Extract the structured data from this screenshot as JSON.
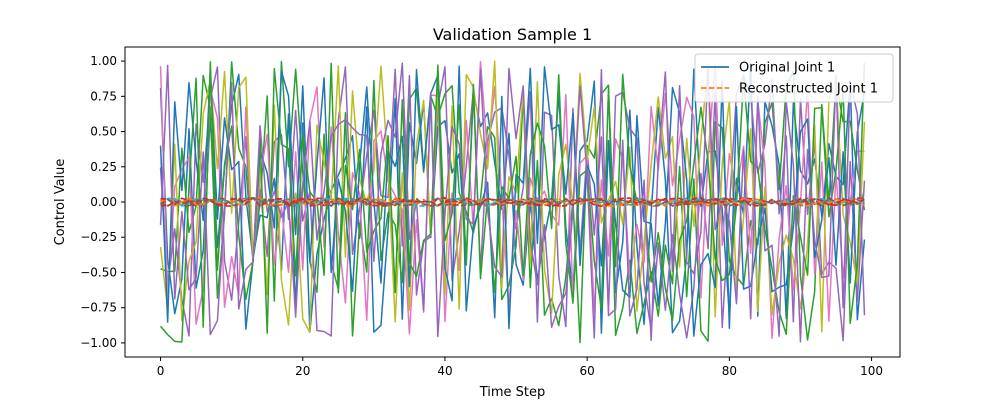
{
  "chart_data": {
    "type": "line",
    "title": "Validation Sample 1",
    "xlabel": "Time Step",
    "ylabel": "Control Value",
    "xlim": [
      -5,
      104
    ],
    "ylim": [
      -1.1,
      1.1
    ],
    "xticks": [
      0,
      20,
      40,
      60,
      80,
      100
    ],
    "yticks": [
      -1.0,
      -0.75,
      -0.5,
      -0.25,
      0.0,
      0.25,
      0.5,
      0.75,
      1.0
    ],
    "ytick_labels": [
      "−1.00",
      "−0.75",
      "−0.50",
      "−0.25",
      "0.00",
      "0.25",
      "0.50",
      "0.75",
      "1.00"
    ],
    "xtick_labels": [
      "0",
      "20",
      "40",
      "60",
      "80",
      "100"
    ],
    "grid": false,
    "legend_position": "top-right",
    "legend": [
      {
        "label": "Original Joint 1",
        "color": "#1f77b4",
        "style": "solid"
      },
      {
        "label": "Reconstructed Joint 1",
        "color": "#ff7f0e",
        "style": "dashed"
      }
    ],
    "series": [
      {
        "name": "Original Joint 1",
        "color": "#1f77b4",
        "style": "solid",
        "noisy": true,
        "amplitude": 1.0,
        "seed": 11
      },
      {
        "name": "Reconstructed Joint 1",
        "color": "#ff7f0e",
        "style": "dashed",
        "noisy": true,
        "amplitude": 0.03,
        "seed": 12
      },
      {
        "color": "#2ca02c",
        "style": "solid",
        "noisy": true,
        "amplitude": 1.0,
        "seed": 21
      },
      {
        "color": "#d62728",
        "style": "dashed",
        "noisy": true,
        "amplitude": 0.03,
        "seed": 22
      },
      {
        "color": "#9467bd",
        "style": "solid",
        "noisy": true,
        "amplitude": 1.0,
        "seed": 31
      },
      {
        "color": "#8c564b",
        "style": "dashed",
        "noisy": true,
        "amplitude": 0.03,
        "seed": 32
      },
      {
        "color": "#e377c2",
        "style": "solid",
        "noisy": true,
        "amplitude": 1.0,
        "seed": 41
      },
      {
        "color": "#7f7f7f",
        "style": "dashed",
        "noisy": true,
        "amplitude": 0.03,
        "seed": 42
      },
      {
        "color": "#bcbd22",
        "style": "solid",
        "noisy": true,
        "amplitude": 1.0,
        "seed": 51
      },
      {
        "color": "#17becf",
        "style": "dashed",
        "noisy": true,
        "amplitude": 0.03,
        "seed": 52
      },
      {
        "color": "#1f77b4",
        "style": "solid",
        "noisy": true,
        "amplitude": 1.0,
        "seed": 61
      },
      {
        "color": "#ff7f0e",
        "style": "dashed",
        "noisy": true,
        "amplitude": 0.03,
        "seed": 62
      },
      {
        "color": "#2ca02c",
        "style": "solid",
        "noisy": true,
        "amplitude": 1.0,
        "seed": 71
      },
      {
        "color": "#d62728",
        "style": "dashed",
        "noisy": true,
        "amplitude": 0.03,
        "seed": 72
      },
      {
        "color": "#9467bd",
        "style": "solid",
        "noisy": true,
        "amplitude": 1.0,
        "seed": 81
      },
      {
        "color": "#8c564b",
        "style": "dashed",
        "noisy": true,
        "amplitude": 0.03,
        "seed": 82
      }
    ],
    "n_points": 100
  }
}
